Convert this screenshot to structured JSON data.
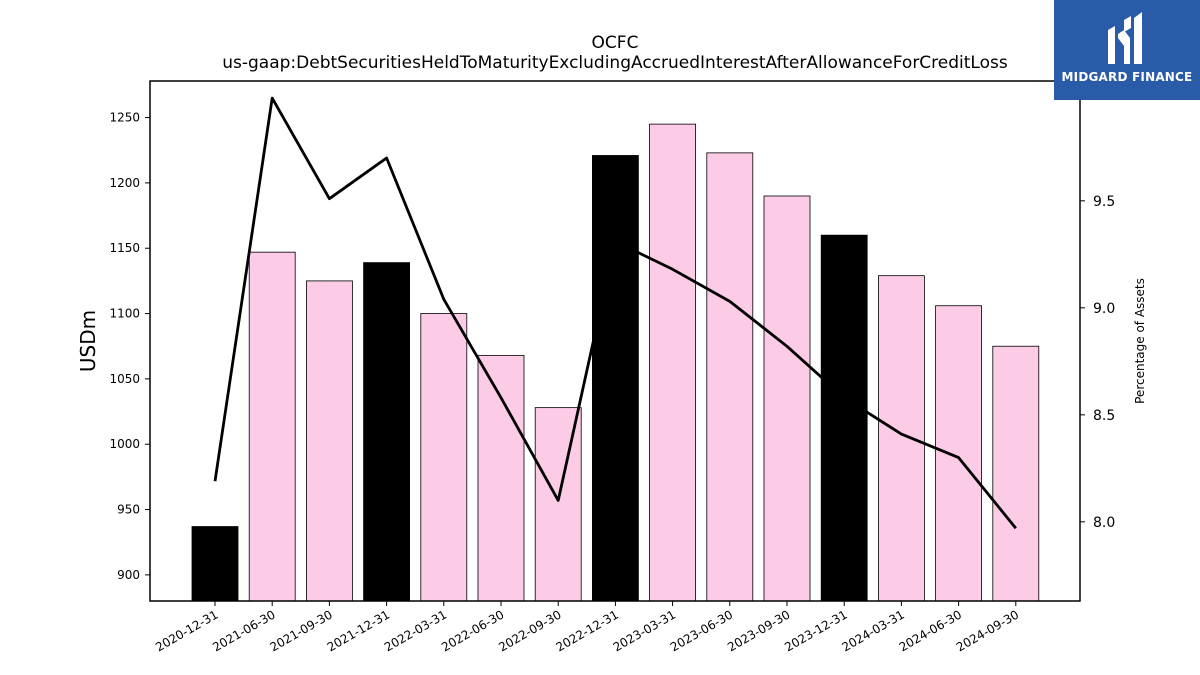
{
  "chart_data": {
    "type": "bar",
    "title": "OCFC",
    "subtitle": "us-gaap:DebtSecuritiesHeldToMaturityExcludingAccruedInterestAfterAllowanceForCreditLoss",
    "ylabel": "USDm",
    "y2label": "Percentage of Assets",
    "categories": [
      "2020-12-31",
      "2021-06-30",
      "2021-09-30",
      "2021-12-31",
      "2022-03-31",
      "2022-06-30",
      "2022-09-30",
      "2022-12-31",
      "2023-03-31",
      "2023-06-30",
      "2023-09-30",
      "2023-12-31",
      "2024-03-31",
      "2024-06-30",
      "2024-09-30"
    ],
    "series": [
      {
        "kind": "bar",
        "values": [
          937,
          1147,
          1125,
          1139,
          1100,
          1068,
          1028,
          1221,
          1245,
          1223,
          1190,
          1160,
          1129,
          1106,
          1075
        ],
        "colors": [
          "#000000",
          "#fccbe6",
          "#fccbe6",
          "#000000",
          "#fccbe6",
          "#fccbe6",
          "#fccbe6",
          "#000000",
          "#fccbe6",
          "#fccbe6",
          "#fccbe6",
          "#000000",
          "#fccbe6",
          "#fccbe6",
          "#fccbe6"
        ]
      },
      {
        "kind": "line",
        "axis": "right",
        "color": "#000000",
        "values": [
          8.19,
          9.98,
          9.51,
          9.7,
          9.04,
          8.58,
          8.1,
          9.31,
          9.18,
          9.03,
          8.82,
          8.58,
          8.41,
          8.3,
          7.97
        ]
      }
    ],
    "ylim": [
      880,
      1278
    ],
    "y_ticks": [
      900,
      950,
      1000,
      1050,
      1100,
      1150,
      1200,
      1250
    ],
    "y2lim": [
      7.63,
      10.06
    ],
    "y2_ticks": [
      "8.0",
      "8.5",
      "9.0",
      "9.5"
    ],
    "grid": false,
    "legend": "none"
  },
  "logo": {
    "text": "MIDGARD FINANCE",
    "background": "#2a5ba9"
  }
}
